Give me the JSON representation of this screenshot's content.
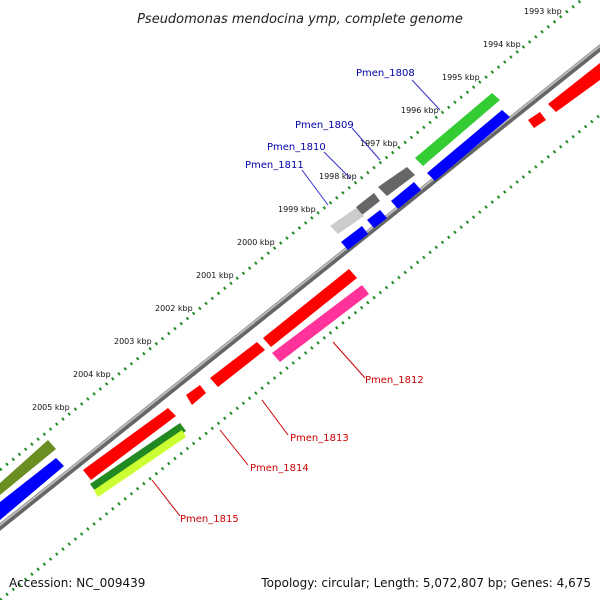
{
  "title": "Pseudomonas mendocina ymp, complete genome",
  "ticks": [
    {
      "label": "1993 kbp"
    },
    {
      "label": "1994 kbp"
    },
    {
      "label": "1995 kbp"
    },
    {
      "label": "1996 kbp"
    },
    {
      "label": "1997 kbp"
    },
    {
      "label": "1998 kbp"
    },
    {
      "label": "1999 kbp"
    },
    {
      "label": "2000 kbp"
    },
    {
      "label": "2001 kbp"
    },
    {
      "label": "2002 kbp"
    },
    {
      "label": "2003 kbp"
    },
    {
      "label": "2004 kbp"
    },
    {
      "label": "2005 kbp"
    }
  ],
  "top_genes": [
    {
      "name": "Pmen_1808",
      "color": "#0000aa"
    },
    {
      "name": "Pmen_1809",
      "color": "#0000aa"
    },
    {
      "name": "Pmen_1810",
      "color": "#0000aa"
    },
    {
      "name": "Pmen_1811",
      "color": "#0000aa"
    }
  ],
  "bottom_genes": [
    {
      "name": "Pmen_1812",
      "color": "#cc0000"
    },
    {
      "name": "Pmen_1813",
      "color": "#cc0000"
    },
    {
      "name": "Pmen_1814",
      "color": "#cc0000"
    },
    {
      "name": "Pmen_1815",
      "color": "#cc0000"
    }
  ],
  "feature_colors": {
    "red": "#ff0000",
    "blue": "#0000ff",
    "green": "#33cc33",
    "dark_gray": "#666666",
    "light_gray": "#cccccc",
    "pink": "#ff3399",
    "dark_green": "#228822",
    "lime": "#ccff33",
    "olive": "#6b8e23",
    "backbone": "#888888",
    "tick_green": "#228b22"
  },
  "footer": {
    "accession": "Accession: NC_009439",
    "topology": "Topology: circular; Length: 5,072,807 bp; Genes: 4,675"
  }
}
